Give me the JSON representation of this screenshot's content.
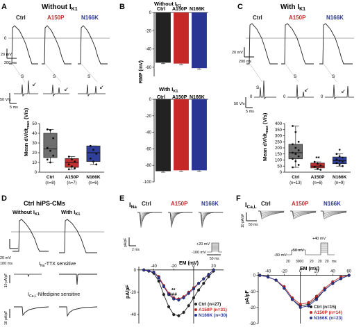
{
  "colors": {
    "ctrl": "#222222",
    "a150p": "#c62828",
    "n166k": "#283593",
    "box_ctrl": "#6e6e6e",
    "box_a150p": "#c43030",
    "box_n166k": "#2f3f9a"
  },
  "panelA": {
    "letter": "A",
    "title": "Without I",
    "title_sub": "K1",
    "labels": [
      "Ctrl",
      "A150P",
      "N166K"
    ],
    "scale_mv": "20 mV",
    "scale_ms": "200 ms",
    "scale_vs": "50 V/s",
    "scale_ms2": "5 ms",
    "stim": "S",
    "zero": "0",
    "ylabel_main": "Mean dV/dt",
    "ylabel_sub": "max",
    "ylabel_unit": " (V/s)",
    "yticks": [
      "0",
      "10",
      "20",
      "30",
      "40",
      "50"
    ],
    "xlabels": [
      [
        "Ctrl",
        "(n=8)"
      ],
      [
        "A150P",
        "(n=7)"
      ],
      [
        "N166K",
        "(n=6)"
      ]
    ]
  },
  "panelB": {
    "letter": "B",
    "top_title": "Without I",
    "bottom_title": "With I",
    "title_sub": "K1",
    "ylabel": "RMP (mV)",
    "top_yticks": [
      "0",
      "-20",
      "-40",
      "-60"
    ],
    "bottom_yticks": [
      "-100",
      "-80",
      "-60",
      "-40",
      "-20",
      "0"
    ],
    "xlabels": [
      "Ctrl",
      "A150P",
      "N166K"
    ]
  },
  "panelC": {
    "letter": "C",
    "title": "With I",
    "title_sub": "K1",
    "labels": [
      "Ctrl",
      "A150P",
      "N166K"
    ],
    "scale_mv": "20 mV",
    "scale_ms": "200 ms",
    "scale_vs": "50 V/s",
    "scale_ms2": "5 ms",
    "stim": "S",
    "zero": "0",
    "yticks": [
      "0",
      "50",
      "100",
      "150",
      "200",
      "250",
      "300",
      "350",
      "400"
    ],
    "xlabels": [
      [
        "Ctrl",
        "(n=13)"
      ],
      [
        "A150P",
        "(n=6)"
      ],
      [
        "N166K",
        "(n=9)"
      ]
    ],
    "sig_a": "**",
    "sig_n": "*"
  },
  "panelD": {
    "letter": "D",
    "title": "Ctrl hiPS-CMs",
    "left": "Without I",
    "right": "With I",
    "sub": "K1",
    "scale_mv": "20 mV",
    "scale_ms": "100 ms",
    "ina_label": "I",
    "ina_sub": "Na",
    "ina_text": "-TTX sensitive",
    "scale_na": "10 pA/pF",
    "ica_label": "I",
    "ica_sub": "Ca,L",
    "ica_text": "-Nifedipine sensitive",
    "scale_ca": "10 pA/pF"
  },
  "panelE": {
    "letter": "E",
    "current": "I",
    "current_sub": "Na",
    "labels": [
      "Ctrl",
      "A150P",
      "N166K"
    ],
    "scale_y": "pA/pF",
    "scale_y_val": "25",
    "scale_x": "2 ms",
    "prot_top": "+20 mV",
    "prot_bot": "-100 mV",
    "prot_ms": "50 ms",
    "xlabel": "EM (mV)",
    "ylabel": "pA/pF",
    "xticks": [
      "-40",
      "-20",
      "0",
      "20"
    ],
    "yticks": [
      "0",
      "-20",
      "-40"
    ],
    "legend": [
      "Ctrl (n=27)",
      "A150P (n=31)",
      "N166K (n=30)"
    ],
    "sig1": "**",
    "sig2": "###"
  },
  "panelF": {
    "letter": "F",
    "current": "I",
    "current_sub": "Ca,L",
    "labels": [
      "Ctrl",
      "A150P",
      "N166K"
    ],
    "scale_y": "10 pA/pF",
    "scale_x": "50 ms",
    "prot_top": "+40 mV",
    "prot_mid": "-50 mV",
    "prot_bot": "-80 mV",
    "prot_ms": [
      "20",
      "3000",
      "20",
      "20",
      "20",
      "ms"
    ],
    "xlabel": "EM (mV)",
    "ylabel": "pA/pF",
    "xticks": [
      "-40",
      "-20",
      "0",
      "20",
      "40",
      "60"
    ],
    "yticks": [
      "0",
      "-10",
      "-20",
      "-30"
    ],
    "legend": [
      "Ctrl (n=15)",
      "A150P (n=14)",
      "N166K (n=23)"
    ]
  },
  "chart_data": [
    {
      "type": "bar",
      "panel": "A",
      "ylabel": "Mean dV/dt max (V/s)",
      "ylim": [
        0,
        50
      ],
      "categories": [
        "Ctrl (n=8)",
        "A150P (n=7)",
        "N166K (n=6)"
      ],
      "boxes": [
        {
          "q1": 15,
          "median": 24,
          "q3": 40,
          "min": 10,
          "max": 44,
          "points": [
            44,
            43,
            35,
            25,
            22,
            17,
            13,
            10
          ]
        },
        {
          "q1": 5,
          "median": 10,
          "q3": 14,
          "min": 3,
          "max": 16,
          "points": [
            16,
            13,
            11,
            8,
            6,
            4,
            3
          ]
        },
        {
          "q1": 11,
          "median": 20,
          "q3": 27,
          "min": 8,
          "max": 27,
          "points": [
            27,
            23,
            19,
            14,
            11,
            8
          ]
        }
      ]
    },
    {
      "type": "bar",
      "panel": "B-top",
      "ylabel": "RMP (mV)",
      "ylim": [
        -70,
        0
      ],
      "categories": [
        "Ctrl",
        "A150P",
        "N166K"
      ],
      "values": [
        -55,
        -56,
        -61
      ]
    },
    {
      "type": "bar",
      "panel": "B-bottom",
      "ylabel": "RMP (mV)",
      "ylim": [
        -100,
        0
      ],
      "categories": [
        "Ctrl",
        "A150P",
        "N166K"
      ],
      "values": [
        -87,
        -86,
        -86
      ]
    },
    {
      "type": "bar",
      "panel": "C",
      "ylabel": "Mean dV/dt max (V/s)",
      "ylim": [
        0,
        400
      ],
      "categories": [
        "Ctrl (n=13)",
        "A150P (n=6)",
        "N166K (n=9)"
      ],
      "boxes": [
        {
          "q1": 110,
          "median": 160,
          "q3": 230,
          "min": 40,
          "max": 380,
          "points": [
            380,
            330,
            250,
            230,
            200,
            180,
            160,
            150,
            130,
            110,
            90,
            60,
            40
          ]
        },
        {
          "q1": 35,
          "median": 50,
          "q3": 75,
          "min": 20,
          "max": 85,
          "points": [
            85,
            70,
            55,
            45,
            30,
            20
          ]
        },
        {
          "q1": 70,
          "median": 95,
          "q3": 125,
          "min": 50,
          "max": 150,
          "points": [
            150,
            130,
            120,
            105,
            95,
            85,
            75,
            60,
            50
          ]
        }
      ]
    },
    {
      "type": "line",
      "panel": "E",
      "xlabel": "EM (mV)",
      "ylabel": "pA/pF",
      "xlim": [
        -55,
        30
      ],
      "ylim": [
        -48,
        3
      ],
      "x": [
        -50,
        -45,
        -40,
        -35,
        -30,
        -25,
        -20,
        -15,
        -10,
        -5,
        0,
        5,
        10,
        15,
        20
      ],
      "series": [
        {
          "name": "Ctrl (n=27)",
          "values": [
            0,
            -1,
            -3,
            -10,
            -22,
            -33,
            -40,
            -41,
            -38,
            -32,
            -25,
            -18,
            -12,
            -6,
            -1
          ]
        },
        {
          "name": "A150P (n=31)",
          "values": [
            0,
            -1,
            -2,
            -6,
            -14,
            -21,
            -25,
            -26,
            -24,
            -20,
            -16,
            -12,
            -8,
            -4,
            0
          ]
        },
        {
          "name": "N166K (n=30)",
          "values": [
            0,
            -1,
            -2,
            -7,
            -15,
            -22,
            -26,
            -27,
            -25,
            -21,
            -17,
            -12,
            -8,
            -4,
            0
          ]
        }
      ]
    },
    {
      "type": "line",
      "panel": "F",
      "xlabel": "EM (mV)",
      "ylabel": "pA/pF",
      "xlim": [
        -52,
        62
      ],
      "ylim": [
        -30,
        2
      ],
      "x": [
        -50,
        -40,
        -30,
        -20,
        -10,
        0,
        10,
        20,
        30,
        40,
        50,
        60
      ],
      "series": [
        {
          "name": "Ctrl (n=15)",
          "values": [
            0,
            -1,
            -3,
            -8,
            -15,
            -19,
            -18,
            -14,
            -9,
            -5,
            -2,
            0
          ]
        },
        {
          "name": "A150P (n=14)",
          "values": [
            0,
            -1,
            -3,
            -7,
            -14,
            -18,
            -17,
            -13,
            -8,
            -4,
            -1,
            0
          ]
        },
        {
          "name": "N166K (n=23)",
          "values": [
            0,
            -1,
            -3,
            -8,
            -15,
            -20,
            -19,
            -15,
            -9,
            -5,
            -2,
            0
          ]
        }
      ]
    }
  ]
}
